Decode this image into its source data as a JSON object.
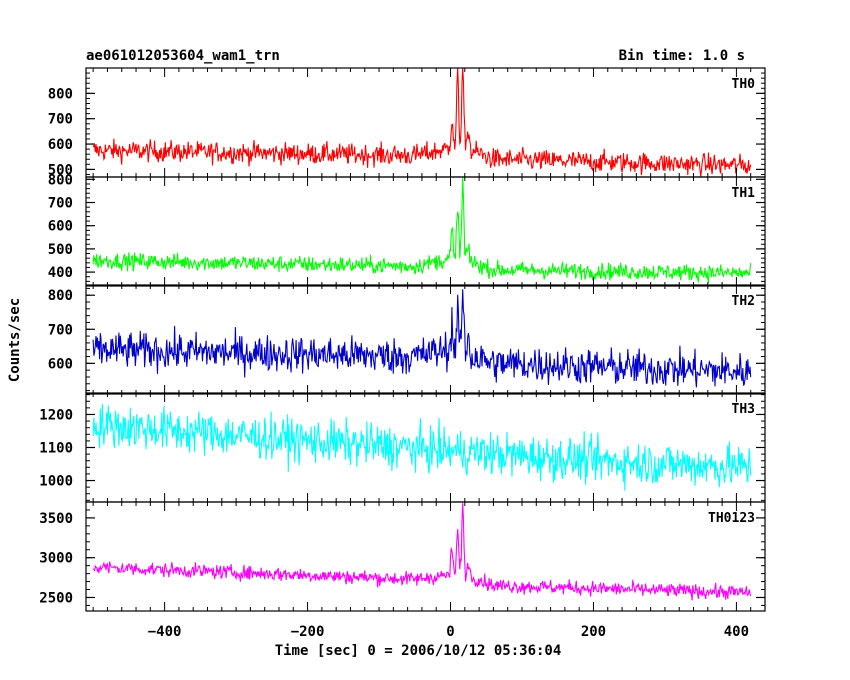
{
  "header": {
    "left_title": "ae061012053604_wam1_trn",
    "right_title": "Bin time: 1.0 s"
  },
  "chart_data": {
    "type": "line",
    "title": "ae061012053604_wam1_trn",
    "subtitle": "Bin time: 1.0 s",
    "xlabel": "Time [sec] 0 = 2006/10/12 05:36:04",
    "ylabel": "Counts/sec",
    "xlim": [
      -510,
      440
    ],
    "x_ticks": [
      -400,
      -200,
      0,
      200,
      400
    ],
    "x_tick_labels": [
      "−400",
      "−200",
      "0",
      "200",
      "400"
    ],
    "x_range": [
      -500,
      420
    ],
    "panels": [
      {
        "name": "TH0",
        "color": "#ff0000",
        "ylim": [
          470,
          900
        ],
        "yticks": [
          500,
          600,
          700,
          800
        ],
        "baseline": [
          [
            -500,
            575
          ],
          [
            -50,
            555
          ],
          [
            -5,
            580
          ],
          [
            30,
            575
          ],
          [
            60,
            540
          ],
          [
            420,
            515
          ]
        ],
        "noise": 35,
        "peaks": [
          [
            2,
            715
          ],
          [
            10,
            870
          ],
          [
            17,
            920
          ],
          [
            25,
            660
          ]
        ]
      },
      {
        "name": "TH1",
        "color": "#00ff00",
        "ylim": [
          340,
          810
        ],
        "yticks": [
          400,
          500,
          600,
          700,
          800
        ],
        "baseline": [
          [
            -500,
            450
          ],
          [
            -50,
            425
          ],
          [
            -5,
            455
          ],
          [
            30,
            440
          ],
          [
            60,
            410
          ],
          [
            420,
            395
          ]
        ],
        "noise": 30,
        "peaks": [
          [
            2,
            580
          ],
          [
            10,
            680
          ],
          [
            17,
            800
          ],
          [
            25,
            520
          ]
        ]
      },
      {
        "name": "TH2",
        "color": "#0000cc",
        "ylim": [
          510,
          830
        ],
        "yticks": [
          600,
          700,
          800
        ],
        "baseline": [
          [
            -500,
            640
          ],
          [
            -50,
            620
          ],
          [
            -5,
            640
          ],
          [
            30,
            620
          ],
          [
            60,
            600
          ],
          [
            420,
            575
          ]
        ],
        "noise": 45,
        "peaks": [
          [
            2,
            715
          ],
          [
            10,
            760
          ],
          [
            17,
            820
          ],
          [
            25,
            690
          ]
        ]
      },
      {
        "name": "TH3",
        "color": "#00ffff",
        "ylim": [
          935,
          1265
        ],
        "yticks": [
          1000,
          1100,
          1200
        ],
        "baseline": [
          [
            -500,
            1170
          ],
          [
            -200,
            1120
          ],
          [
            0,
            1090
          ],
          [
            200,
            1060
          ],
          [
            420,
            1040
          ]
        ],
        "noise": 55,
        "peaks": []
      },
      {
        "name": "TH0123",
        "color": "#ff00ff",
        "ylim": [
          2330,
          3700
        ],
        "yticks": [
          2500,
          3000,
          3500
        ],
        "baseline": [
          [
            -500,
            2880
          ],
          [
            -50,
            2730
          ],
          [
            -5,
            2780
          ],
          [
            30,
            2760
          ],
          [
            60,
            2650
          ],
          [
            420,
            2560
          ]
        ],
        "noise": 75,
        "peaks": [
          [
            2,
            3130
          ],
          [
            10,
            3350
          ],
          [
            17,
            3680
          ],
          [
            25,
            2980
          ]
        ]
      }
    ]
  }
}
